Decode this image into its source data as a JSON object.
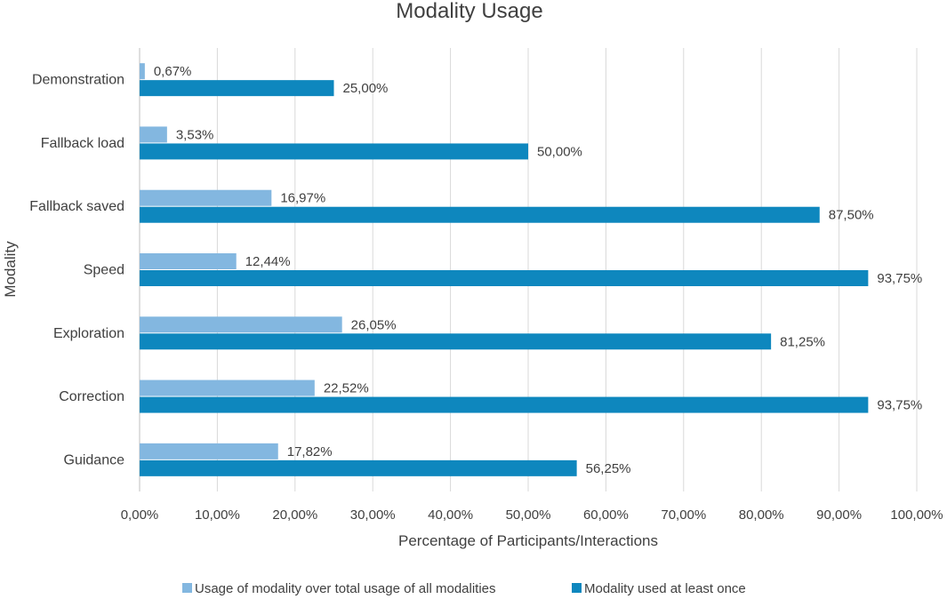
{
  "chart_data": {
    "type": "bar",
    "orientation": "horizontal",
    "title": "Modality Usage",
    "xlabel": "Percentage of Participants/Interactions",
    "ylabel": "Modality",
    "xlim": [
      0,
      100
    ],
    "xticks": [
      0,
      10,
      20,
      30,
      40,
      50,
      60,
      70,
      80,
      90,
      100
    ],
    "xtick_labels": [
      "0,00%",
      "10,00%",
      "20,00%",
      "30,00%",
      "40,00%",
      "50,00%",
      "60,00%",
      "70,00%",
      "80,00%",
      "90,00%",
      "100,00%"
    ],
    "categories": [
      "Demonstration",
      "Fallback load",
      "Fallback saved",
      "Speed",
      "Exploration",
      "Correction",
      "Guidance"
    ],
    "series": [
      {
        "name": "Usage of modality over total usage of all modalities",
        "color": "#83b7e0",
        "values": [
          0.67,
          3.53,
          16.97,
          12.44,
          26.05,
          22.52,
          17.82
        ],
        "labels": [
          "0,67%",
          "3,53%",
          "16,97%",
          "12,44%",
          "26,05%",
          "22,52%",
          "17,82%"
        ]
      },
      {
        "name": "Modality used at least once",
        "color": "#0e87be",
        "values": [
          25.0,
          50.0,
          87.5,
          93.75,
          81.25,
          93.75,
          56.25
        ],
        "labels": [
          "25,00%",
          "50,00%",
          "87,50%",
          "93,75%",
          "81,25%",
          "93,75%",
          "56,25%"
        ]
      }
    ],
    "grid": true,
    "legend_position": "bottom"
  }
}
